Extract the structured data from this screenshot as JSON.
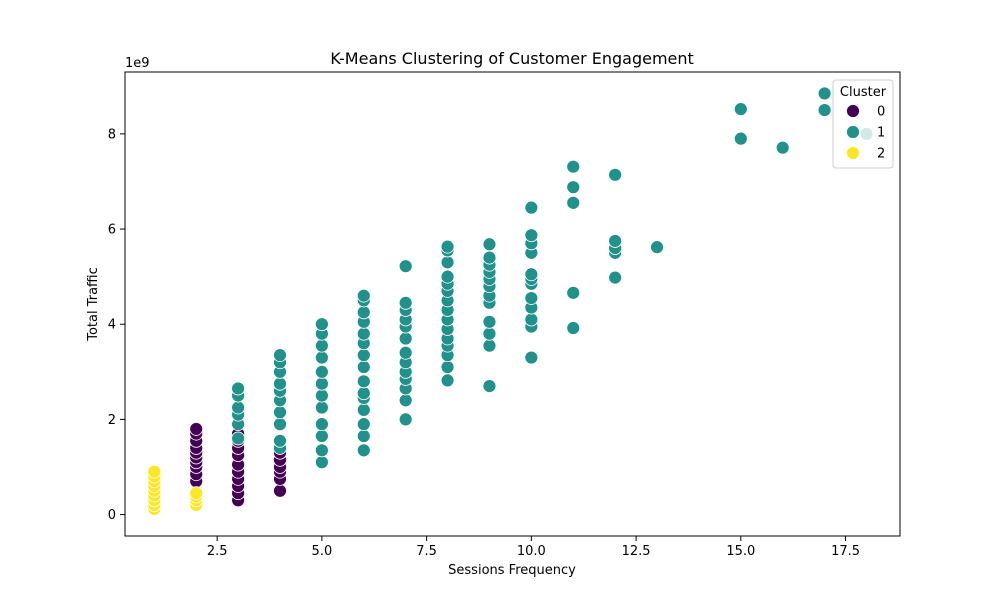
{
  "chart_data": {
    "type": "scatter",
    "title": "K-Means Clustering of Customer Engagement",
    "xlabel": "Sessions Frequency",
    "ylabel": "Total Traffic",
    "y_multiplier": "1e9",
    "xlim": [
      0.3,
      18.8
    ],
    "ylim": [
      -0.45,
      9.3
    ],
    "xticks": [
      2.5,
      5.0,
      7.5,
      10.0,
      12.5,
      15.0,
      17.5
    ],
    "xtick_labels": [
      "2.5",
      "5.0",
      "7.5",
      "10.0",
      "12.5",
      "15.0",
      "17.5"
    ],
    "yticks": [
      0,
      2,
      4,
      6,
      8
    ],
    "ytick_labels": [
      "0",
      "2",
      "4",
      "6",
      "8"
    ],
    "grid": false,
    "legend": {
      "title": "Cluster",
      "placement": "top-right"
    },
    "series": [
      {
        "name": "0",
        "color": "#440154",
        "points": [
          [
            2,
            0.7
          ],
          [
            2,
            0.85
          ],
          [
            2,
            1.0
          ],
          [
            2,
            1.1
          ],
          [
            2,
            1.2
          ],
          [
            2,
            1.3
          ],
          [
            2,
            1.4
          ],
          [
            2,
            1.55
          ],
          [
            2,
            1.7
          ],
          [
            2,
            1.8
          ],
          [
            3,
            0.3
          ],
          [
            3,
            0.45
          ],
          [
            3,
            0.6
          ],
          [
            3,
            0.75
          ],
          [
            3,
            0.9
          ],
          [
            3,
            1.05
          ],
          [
            3,
            1.25
          ],
          [
            3,
            1.4
          ],
          [
            3,
            1.55
          ],
          [
            3,
            1.7
          ],
          [
            4,
            0.5
          ],
          [
            4,
            0.75
          ],
          [
            4,
            0.9
          ],
          [
            4,
            1.0
          ],
          [
            4,
            1.15
          ],
          [
            4,
            1.3
          ]
        ]
      },
      {
        "name": "1",
        "color": "#21918c",
        "points": [
          [
            3,
            1.6
          ],
          [
            3,
            1.9
          ],
          [
            3,
            2.1
          ],
          [
            3,
            2.25
          ],
          [
            3,
            2.5
          ],
          [
            3,
            2.65
          ],
          [
            4,
            1.4
          ],
          [
            4,
            1.55
          ],
          [
            4,
            1.9
          ],
          [
            4,
            2.15
          ],
          [
            4,
            2.4
          ],
          [
            4,
            2.6
          ],
          [
            4,
            2.75
          ],
          [
            4,
            3.0
          ],
          [
            4,
            3.2
          ],
          [
            4,
            3.35
          ],
          [
            5,
            1.1
          ],
          [
            5,
            1.35
          ],
          [
            5,
            1.65
          ],
          [
            5,
            1.9
          ],
          [
            5,
            2.25
          ],
          [
            5,
            2.5
          ],
          [
            5,
            2.75
          ],
          [
            5,
            3.0
          ],
          [
            5,
            3.3
          ],
          [
            5,
            3.55
          ],
          [
            5,
            3.8
          ],
          [
            5,
            4.0
          ],
          [
            6,
            1.35
          ],
          [
            6,
            1.65
          ],
          [
            6,
            1.9
          ],
          [
            6,
            2.2
          ],
          [
            6,
            2.45
          ],
          [
            6,
            2.55
          ],
          [
            6,
            2.8
          ],
          [
            6,
            3.1
          ],
          [
            6,
            3.35
          ],
          [
            6,
            3.6
          ],
          [
            6,
            3.8
          ],
          [
            6,
            4.05
          ],
          [
            6,
            4.25
          ],
          [
            6,
            4.5
          ],
          [
            6,
            4.6
          ],
          [
            7,
            2.0
          ],
          [
            7,
            2.4
          ],
          [
            7,
            2.65
          ],
          [
            7,
            2.85
          ],
          [
            7,
            3.0
          ],
          [
            7,
            3.2
          ],
          [
            7,
            3.4
          ],
          [
            7,
            3.7
          ],
          [
            7,
            3.95
          ],
          [
            7,
            4.1
          ],
          [
            7,
            4.3
          ],
          [
            7,
            4.45
          ],
          [
            7,
            5.22
          ],
          [
            8,
            2.82
          ],
          [
            8,
            3.1
          ],
          [
            8,
            3.35
          ],
          [
            8,
            3.55
          ],
          [
            8,
            3.7
          ],
          [
            8,
            3.9
          ],
          [
            8,
            4.1
          ],
          [
            8,
            4.3
          ],
          [
            8,
            4.5
          ],
          [
            8,
            4.7
          ],
          [
            8,
            4.85
          ],
          [
            8,
            5.0
          ],
          [
            8,
            5.3
          ],
          [
            8,
            5.55
          ],
          [
            8,
            5.63
          ],
          [
            9,
            2.7
          ],
          [
            9,
            3.55
          ],
          [
            9,
            3.8
          ],
          [
            9,
            4.05
          ],
          [
            9,
            4.45
          ],
          [
            9,
            4.6
          ],
          [
            9,
            4.8
          ],
          [
            9,
            4.95
          ],
          [
            9,
            5.1
          ],
          [
            9,
            5.25
          ],
          [
            9,
            5.4
          ],
          [
            9,
            5.68
          ],
          [
            10,
            3.3
          ],
          [
            10,
            3.95
          ],
          [
            10,
            4.1
          ],
          [
            10,
            4.35
          ],
          [
            10,
            4.55
          ],
          [
            10,
            4.85
          ],
          [
            10,
            4.95
          ],
          [
            10,
            5.05
          ],
          [
            10,
            5.5
          ],
          [
            10,
            5.7
          ],
          [
            10,
            5.87
          ],
          [
            10,
            6.45
          ],
          [
            11,
            3.92
          ],
          [
            11,
            4.66
          ],
          [
            11,
            6.55
          ],
          [
            11,
            6.88
          ],
          [
            11,
            7.31
          ],
          [
            12,
            4.98
          ],
          [
            12,
            5.5
          ],
          [
            12,
            5.6
          ],
          [
            12,
            5.75
          ],
          [
            12,
            7.14
          ],
          [
            13,
            5.62
          ],
          [
            15,
            7.9
          ],
          [
            15,
            8.52
          ],
          [
            16,
            7.71
          ],
          [
            17,
            8.5
          ],
          [
            17,
            8.85
          ],
          [
            18,
            8.0
          ]
        ]
      },
      {
        "name": "2",
        "color": "#fde725",
        "points": [
          [
            1,
            0.12
          ],
          [
            1,
            0.2
          ],
          [
            1,
            0.3
          ],
          [
            1,
            0.4
          ],
          [
            1,
            0.5
          ],
          [
            1,
            0.6
          ],
          [
            1,
            0.7
          ],
          [
            1,
            0.8
          ],
          [
            1,
            0.9
          ],
          [
            2,
            0.2
          ],
          [
            2,
            0.3
          ],
          [
            2,
            0.38
          ],
          [
            2,
            0.45
          ]
        ]
      }
    ]
  }
}
